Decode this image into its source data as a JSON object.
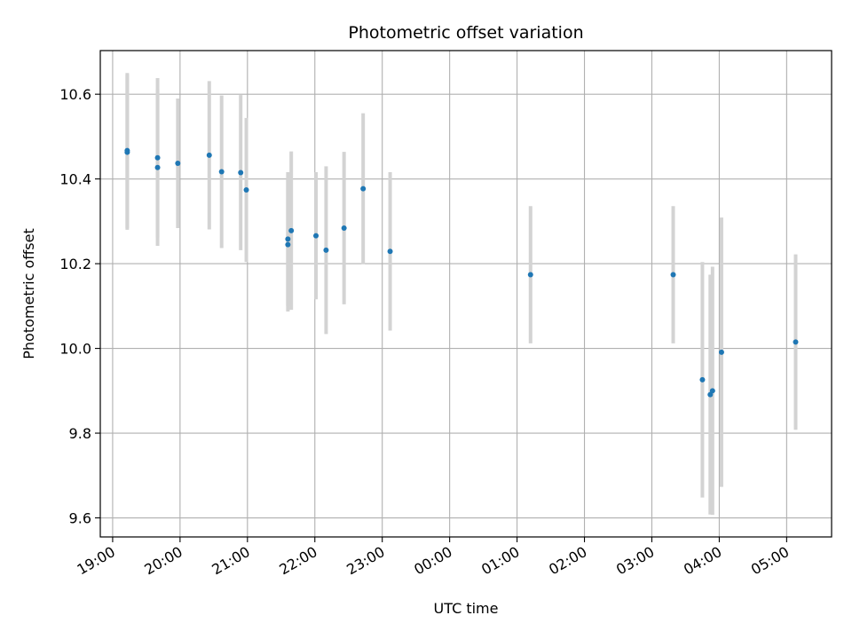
{
  "chart_data": {
    "type": "scatter",
    "title": "Photometric offset variation",
    "xlabel": "UTC time",
    "ylabel": "Photometric offset",
    "grid": true,
    "x_start": "19:00",
    "x_end": "05:00 (+1 day)",
    "xlim": [
      "18:49",
      "05:40 (+1 day)"
    ],
    "ylim": [
      9.555,
      10.703
    ],
    "x_ticks": [
      "19:00",
      "20:00",
      "21:00",
      "22:00",
      "23:00",
      "00:00",
      "01:00",
      "02:00",
      "03:00",
      "04:00",
      "05:00"
    ],
    "y_ticks": [
      "9.6",
      "9.8",
      "10.0",
      "10.2",
      "10.4",
      "10.6"
    ],
    "point_color": "#1f77b4",
    "errorbar_color": "#d3d3d3",
    "points": [
      {
        "time": "19:13",
        "y": 10.467,
        "err": 0.183
      },
      {
        "time": "19:13",
        "y": 10.463,
        "err": 0.183
      },
      {
        "time": "19:40",
        "y": 10.45,
        "err": 0.188
      },
      {
        "time": "19:40",
        "y": 10.427,
        "err": 0.185
      },
      {
        "time": "19:58",
        "y": 10.437,
        "err": 0.153
      },
      {
        "time": "20:26",
        "y": 10.456,
        "err": 0.175
      },
      {
        "time": "20:37",
        "y": 10.417,
        "err": 0.18
      },
      {
        "time": "20:54",
        "y": 10.415,
        "err": 0.183
      },
      {
        "time": "20:59",
        "y": 10.374,
        "err": 0.17
      },
      {
        "time": "21:36",
        "y": 10.258,
        "err": 0.158
      },
      {
        "time": "21:36",
        "y": 10.245,
        "err": 0.158
      },
      {
        "time": "21:39",
        "y": 10.278,
        "err": 0.187
      },
      {
        "time": "22:01",
        "y": 10.266,
        "err": 0.15
      },
      {
        "time": "22:10",
        "y": 10.232,
        "err": 0.198
      },
      {
        "time": "22:26",
        "y": 10.284,
        "err": 0.18
      },
      {
        "time": "22:43",
        "y": 10.377,
        "err": 0.178
      },
      {
        "time": "23:07",
        "y": 10.229,
        "err": 0.187
      },
      {
        "time": "01:12",
        "y": 10.174,
        "err": 0.162
      },
      {
        "time": "03:19",
        "y": 10.174,
        "err": 0.162
      },
      {
        "time": "03:45",
        "y": 9.926,
        "err": 0.278
      },
      {
        "time": "03:52",
        "y": 9.891,
        "err": 0.283
      },
      {
        "time": "03:54",
        "y": 9.9,
        "err": 0.293
      },
      {
        "time": "04:02",
        "y": 9.991,
        "err": 0.318
      },
      {
        "time": "05:08",
        "y": 10.015,
        "err": 0.207
      }
    ]
  }
}
